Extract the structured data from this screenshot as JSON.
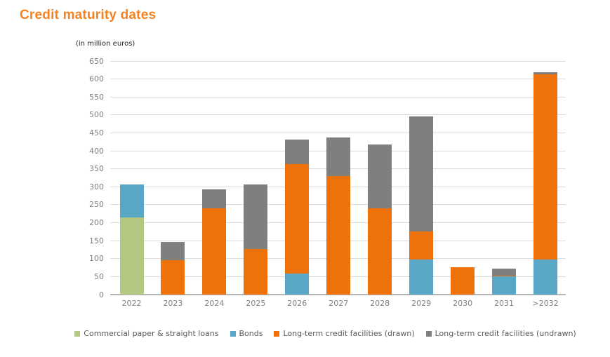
{
  "title": "Credit maturity dates",
  "subtitle": "(in million euros)",
  "colors": {
    "title": "#f5821f",
    "commercial_paper": "#b3c983",
    "bonds": "#57a7c5",
    "drawn": "#ee7209",
    "undrawn": "#7f7f7e",
    "gridline": "#dcdcdc",
    "axis_line": "#b5b5b5",
    "tick_label": "#7f7f7f",
    "legend_text": "#595959"
  },
  "chart_data": {
    "type": "bar",
    "stacked": true,
    "title": "Credit maturity dates",
    "subtitle": "(in million euros)",
    "xlabel": "",
    "ylabel": "(in million euros)",
    "ylim": [
      0,
      650
    ],
    "ytick_step": 50,
    "grid": true,
    "legend_position": "bottom",
    "categories": [
      "2022",
      "2023",
      "2024",
      "2025",
      "2026",
      "2027",
      "2028",
      "2029",
      "2030",
      "2031",
      ">2032"
    ],
    "series": [
      {
        "name": "Commercial paper & straight loans",
        "color": "#b3c983",
        "values": [
          215,
          0,
          0,
          0,
          0,
          0,
          0,
          0,
          0,
          0,
          0
        ]
      },
      {
        "name": "Bonds",
        "color": "#57a7c5",
        "values": [
          92,
          0,
          0,
          0,
          58,
          0,
          0,
          98,
          0,
          50,
          98
        ]
      },
      {
        "name": "Long-term credit facilities (drawn)",
        "color": "#ee7209",
        "values": [
          0,
          95,
          241,
          126,
          306,
          330,
          241,
          78,
          77,
          3,
          515
        ]
      },
      {
        "name": "Long-term credit facilities (undrawn)",
        "color": "#7f7f7e",
        "values": [
          0,
          51,
          51,
          180,
          68,
          107,
          177,
          320,
          0,
          19,
          5
        ]
      }
    ],
    "totals": [
      307,
      146,
      292,
      306,
      432,
      437,
      418,
      496,
      77,
      72,
      618
    ]
  }
}
